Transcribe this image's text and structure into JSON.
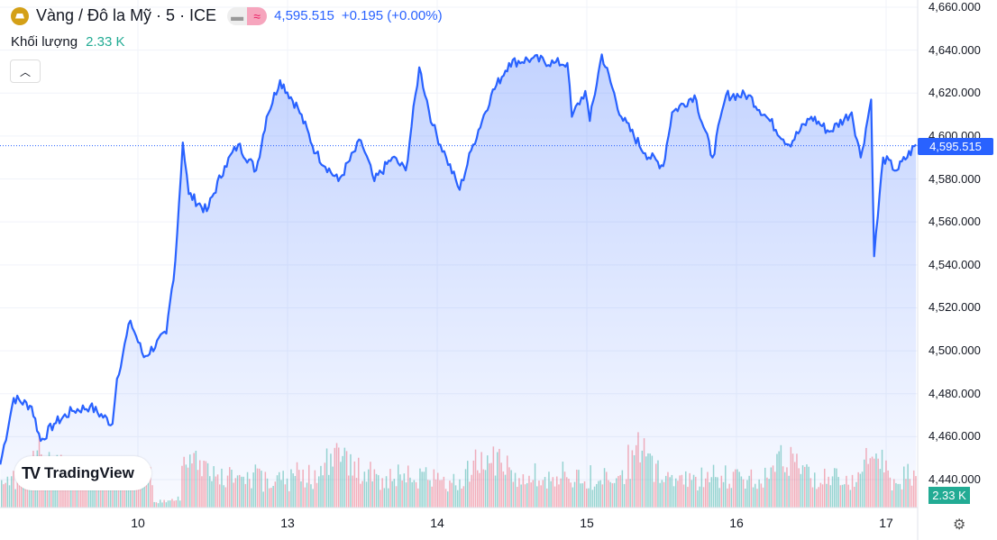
{
  "header": {
    "symbol": "Vàng / Đô la Mỹ · 5 · ICE",
    "icon": "gold-bars-icon",
    "price": "4,595.515",
    "change": "+0.195 (+0.00%)"
  },
  "volume": {
    "label": "Khối lượng",
    "value": "2.33 K"
  },
  "brand": "TradingView",
  "colors": {
    "line": "#2962ff",
    "up": "#22ab94",
    "down": "#f7525f"
  },
  "chart_data": {
    "type": "area",
    "title": "Vàng / Đô la Mỹ · 5 · ICE",
    "y_ticks": [
      "4,660.000",
      "4,640.000",
      "4,620.000",
      "4,600.000",
      "4,580.000",
      "4,560.000",
      "4,540.000",
      "4,520.000",
      "4,500.000",
      "4,480.000",
      "4,460.000",
      "4,440.000"
    ],
    "ylim": [
      4440,
      4660
    ],
    "x_ticks": [
      {
        "label": "10",
        "t": 1
      },
      {
        "label": "13",
        "t": 2
      },
      {
        "label": "14",
        "t": 3
      },
      {
        "label": "15",
        "t": 4
      },
      {
        "label": "16",
        "t": 5
      },
      {
        "label": "17",
        "t": 6
      }
    ],
    "x_units": "trading-day index",
    "last_price_label": "4,595.515",
    "last_price": 4595.515,
    "volume_label": "2.33 K",
    "price_points": [
      [
        0.08,
        4447
      ],
      [
        0.17,
        4478
      ],
      [
        0.29,
        4474
      ],
      [
        0.35,
        4458
      ],
      [
        0.44,
        4466
      ],
      [
        0.56,
        4472
      ],
      [
        0.68,
        4474
      ],
      [
        0.83,
        4466
      ],
      [
        0.86,
        4487
      ],
      [
        0.95,
        4514
      ],
      [
        1.04,
        4497
      ],
      [
        1.19,
        4508
      ],
      [
        1.25,
        4542
      ],
      [
        1.3,
        4597
      ],
      [
        1.34,
        4573
      ],
      [
        1.46,
        4565
      ],
      [
        1.58,
        4586
      ],
      [
        1.67,
        4596
      ],
      [
        1.79,
        4584
      ],
      [
        1.86,
        4609
      ],
      [
        1.95,
        4626
      ],
      [
        2.07,
        4613
      ],
      [
        2.19,
        4592
      ],
      [
        2.34,
        4579
      ],
      [
        2.49,
        4598
      ],
      [
        2.58,
        4579
      ],
      [
        2.7,
        4590
      ],
      [
        2.79,
        4584
      ],
      [
        2.88,
        4632
      ],
      [
        2.97,
        4605
      ],
      [
        3.06,
        4590
      ],
      [
        3.15,
        4575
      ],
      [
        3.24,
        4596
      ],
      [
        3.36,
        4619
      ],
      [
        3.48,
        4634
      ],
      [
        3.63,
        4636
      ],
      [
        3.78,
        4634
      ],
      [
        3.87,
        4634
      ],
      [
        3.9,
        4609
      ],
      [
        3.99,
        4621
      ],
      [
        4.02,
        4607
      ],
      [
        4.1,
        4638
      ],
      [
        4.23,
        4609
      ],
      [
        4.39,
        4592
      ],
      [
        4.51,
        4586
      ],
      [
        4.57,
        4611
      ],
      [
        4.72,
        4619
      ],
      [
        4.84,
        4590
      ],
      [
        4.93,
        4619
      ],
      [
        5.08,
        4619
      ],
      [
        5.2,
        4609
      ],
      [
        5.35,
        4596
      ],
      [
        5.5,
        4609
      ],
      [
        5.62,
        4602
      ],
      [
        5.77,
        4611
      ],
      [
        5.83,
        4590
      ],
      [
        5.9,
        4617
      ],
      [
        5.92,
        4544
      ],
      [
        5.98,
        4590
      ],
      [
        6.07,
        4584
      ],
      [
        6.2,
        4596
      ]
    ]
  }
}
